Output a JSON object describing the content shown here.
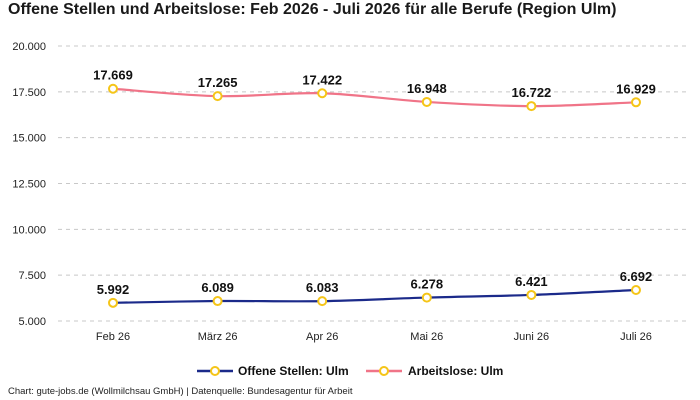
{
  "chart_data": {
    "type": "line",
    "title": "Offene Stellen und Arbeitslose: Feb 2026 - Juli 2026 für alle Berufe (Region Ulm)",
    "categories": [
      "Feb 26",
      "März 26",
      "Apr 26",
      "Mai 26",
      "Juni 26",
      "Juli 26"
    ],
    "ylim": [
      5000,
      20000
    ],
    "yticks": [
      5000,
      7500,
      10000,
      12500,
      15000,
      17500,
      20000
    ],
    "ytick_labels": [
      "5.000",
      "7.500",
      "10.000",
      "12.500",
      "15.000",
      "17.500",
      "20.000"
    ],
    "grid": true,
    "legend_position": "bottom-center",
    "series": [
      {
        "name": "Offene Stellen: Ulm",
        "color": "#1b2a8a",
        "values": [
          5992,
          6089,
          6083,
          6278,
          6421,
          6692
        ],
        "labels": [
          "5.992",
          "6.089",
          "6.083",
          "6.278",
          "6.421",
          "6.692"
        ]
      },
      {
        "name": "Arbeitslose: Ulm",
        "color": "#f07488",
        "values": [
          17669,
          17265,
          17422,
          16948,
          16722,
          16929
        ],
        "labels": [
          "17.669",
          "17.265",
          "17.422",
          "16.948",
          "16.722",
          "16.929"
        ]
      }
    ],
    "marker_color": "#f5c518"
  },
  "source": "Chart: gute-jobs.de (Wollmilchsau GmbH) | Datenquelle: Bundesagentur für Arbeit"
}
